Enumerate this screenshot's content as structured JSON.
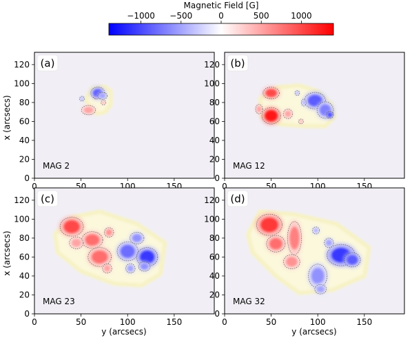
{
  "colorbar": {
    "label": "Magnetic Field [G]",
    "ticks": [
      -1000,
      -500,
      0,
      500,
      1000
    ],
    "tick_labels": [
      "−1000",
      "−500",
      "0",
      "500",
      "1000"
    ],
    "range": [
      -1400,
      1400
    ],
    "colormap": "bwr",
    "colors": {
      "negative": "#0000ff",
      "zero": "#ffffff",
      "positive": "#ff0000"
    }
  },
  "axes": {
    "xlabel": "y (arcsecs)",
    "ylabel": "x (arcsecs)",
    "xlim": [
      0,
      193
    ],
    "ylim": [
      0,
      133
    ],
    "xticks": [
      0,
      50,
      100,
      150
    ],
    "yticks": [
      0,
      20,
      40,
      60,
      80,
      100,
      120
    ]
  },
  "chart_data": [
    {
      "type": "heatmap",
      "panel": "(a)",
      "annotation": "MAG 2",
      "mask": [
        [
          55,
          84
        ],
        [
          62,
          95
        ],
        [
          75,
          97
        ],
        [
          82,
          92
        ],
        [
          82,
          78
        ],
        [
          76,
          70
        ],
        [
          68,
          68
        ],
        [
          60,
          72
        ]
      ],
      "positive_regions": [
        {
          "center": [
            58,
            72
          ],
          "radii": [
            6,
            4
          ],
          "peak": 500
        },
        {
          "center": [
            66,
            86
          ],
          "radii": [
            2,
            2
          ],
          "peak": 400
        },
        {
          "center": [
            74,
            80
          ],
          "radii": [
            2,
            2
          ],
          "peak": 400
        }
      ],
      "negative_regions": [
        {
          "center": [
            68,
            90
          ],
          "radii": [
            6,
            5
          ],
          "peak": -900
        },
        {
          "center": [
            73,
            87
          ],
          "radii": [
            4,
            3
          ],
          "peak": -500
        },
        {
          "center": [
            51,
            84
          ],
          "radii": [
            2,
            2
          ],
          "peak": -400
        }
      ]
    },
    {
      "type": "heatmap",
      "panel": "(b)",
      "annotation": "MAG 12",
      "mask": [
        [
          38,
          84
        ],
        [
          55,
          96
        ],
        [
          80,
          98
        ],
        [
          100,
          92
        ],
        [
          115,
          78
        ],
        [
          118,
          65
        ],
        [
          108,
          55
        ],
        [
          85,
          55
        ],
        [
          60,
          57
        ],
        [
          40,
          65
        ]
      ],
      "positive_regions": [
        {
          "center": [
            50,
            90
          ],
          "radii": [
            7,
            5
          ],
          "peak": 1000
        },
        {
          "center": [
            50,
            66
          ],
          "radii": [
            8,
            7
          ],
          "peak": 1300
        },
        {
          "center": [
            37,
            73
          ],
          "radii": [
            3,
            4
          ],
          "peak": 500
        },
        {
          "center": [
            68,
            68
          ],
          "radii": [
            4,
            4
          ],
          "peak": 500
        },
        {
          "center": [
            82,
            60
          ],
          "radii": [
            2,
            2
          ],
          "peak": 400
        }
      ],
      "negative_regions": [
        {
          "center": [
            97,
            82
          ],
          "radii": [
            9,
            7
          ],
          "peak": -900
        },
        {
          "center": [
            108,
            72
          ],
          "radii": [
            7,
            7
          ],
          "peak": -700
        },
        {
          "center": [
            113,
            67
          ],
          "radii": [
            3,
            3
          ],
          "peak": -1000
        },
        {
          "center": [
            85,
            80
          ],
          "radii": [
            2,
            3
          ],
          "peak": -400
        },
        {
          "center": [
            78,
            90
          ],
          "radii": [
            2,
            2
          ],
          "peak": -400
        }
      ]
    },
    {
      "type": "heatmap",
      "panel": "(c)",
      "annotation": "MAG 23",
      "mask": [
        [
          22,
          84
        ],
        [
          40,
          102
        ],
        [
          70,
          108
        ],
        [
          110,
          95
        ],
        [
          140,
          75
        ],
        [
          135,
          42
        ],
        [
          115,
          30
        ],
        [
          85,
          32
        ],
        [
          50,
          45
        ],
        [
          25,
          65
        ]
      ],
      "positive_regions": [
        {
          "center": [
            40,
            92
          ],
          "radii": [
            10,
            8
          ],
          "peak": 1000
        },
        {
          "center": [
            62,
            78
          ],
          "radii": [
            9,
            7
          ],
          "peak": 800
        },
        {
          "center": [
            70,
            60
          ],
          "radii": [
            10,
            8
          ],
          "peak": 800
        },
        {
          "center": [
            45,
            75
          ],
          "radii": [
            6,
            5
          ],
          "peak": 500
        },
        {
          "center": [
            78,
            48
          ],
          "radii": [
            4,
            4
          ],
          "peak": 500
        },
        {
          "center": [
            80,
            86
          ],
          "radii": [
            4,
            4
          ],
          "peak": 600
        }
      ],
      "negative_regions": [
        {
          "center": [
            100,
            66
          ],
          "radii": [
            9,
            8
          ],
          "peak": -800
        },
        {
          "center": [
            121,
            60
          ],
          "radii": [
            9,
            8
          ],
          "peak": -1100
        },
        {
          "center": [
            110,
            80
          ],
          "radii": [
            6,
            5
          ],
          "peak": -600
        },
        {
          "center": [
            118,
            50
          ],
          "radii": [
            5,
            4
          ],
          "peak": -600
        },
        {
          "center": [
            103,
            48
          ],
          "radii": [
            4,
            4
          ],
          "peak": -500
        }
      ]
    },
    {
      "type": "heatmap",
      "panel": "(d)",
      "annotation": "MAG 32",
      "mask": [
        [
          25,
          84
        ],
        [
          38,
          108
        ],
        [
          75,
          105
        ],
        [
          120,
          95
        ],
        [
          155,
          70
        ],
        [
          150,
          40
        ],
        [
          115,
          25
        ],
        [
          80,
          22
        ],
        [
          55,
          40
        ],
        [
          30,
          65
        ]
      ],
      "positive_regions": [
        {
          "center": [
            48,
            94
          ],
          "radii": [
            11,
            9
          ],
          "peak": 1100
        },
        {
          "center": [
            55,
            74
          ],
          "radii": [
            8,
            7
          ],
          "peak": 800
        },
        {
          "center": [
            75,
            80
          ],
          "radii": [
            6,
            14
          ],
          "peak": 700
        },
        {
          "center": [
            72,
            55
          ],
          "radii": [
            7,
            6
          ],
          "peak": 600
        }
      ],
      "negative_regions": [
        {
          "center": [
            125,
            62
          ],
          "radii": [
            12,
            9
          ],
          "peak": -1100
        },
        {
          "center": [
            137,
            57
          ],
          "radii": [
            7,
            6
          ],
          "peak": -900
        },
        {
          "center": [
            100,
            40
          ],
          "radii": [
            8,
            10
          ],
          "peak": -600
        },
        {
          "center": [
            103,
            26
          ],
          "radii": [
            5,
            4
          ],
          "peak": -500
        },
        {
          "center": [
            112,
            75
          ],
          "radii": [
            4,
            4
          ],
          "peak": -500
        },
        {
          "center": [
            98,
            88
          ],
          "radii": [
            3,
            3
          ],
          "peak": -400
        }
      ]
    }
  ]
}
